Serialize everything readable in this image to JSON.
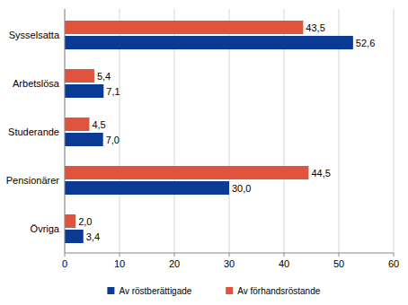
{
  "chart_data": {
    "type": "bar",
    "orientation": "horizontal",
    "categories": [
      "Sysselsatta",
      "Arbetslösa",
      "Studerande",
      "Pensionärer",
      "Övriga"
    ],
    "series": [
      {
        "name": "Av förhandsröstande",
        "color": "#e0533c",
        "values": [
          43.5,
          5.4,
          4.5,
          44.5,
          2.0
        ],
        "value_labels": [
          "43,5",
          "5,4",
          "4,5",
          "44,5",
          "2,0"
        ]
      },
      {
        "name": "Av röstberättigade",
        "color": "#0a3a94",
        "values": [
          52.6,
          7.1,
          7.0,
          30.0,
          3.4
        ],
        "value_labels": [
          "52,6",
          "7,1",
          "7,0",
          "30,0",
          "3,4"
        ]
      }
    ],
    "xlim": [
      0,
      60
    ],
    "xticks": [
      0,
      10,
      20,
      30,
      40,
      50,
      60
    ],
    "grid": true,
    "data_labels": true,
    "legend": "bottom"
  }
}
